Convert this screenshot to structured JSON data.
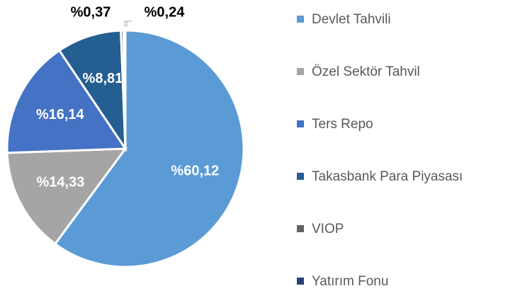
{
  "chart_data": {
    "type": "pie",
    "categories": [
      "Devlet Tahvili",
      "Özel Sektör Tahvil",
      "Ters Repo",
      "Takasbank Para Piyasası",
      "VIOP",
      "Yatırım Fonu"
    ],
    "values": [
      60.12,
      14.33,
      16.14,
      8.81,
      0.37,
      0.24
    ],
    "value_labels": [
      "%60,12",
      "%14,33",
      "%16,14",
      "%8,81",
      "%0,37",
      "%0,24"
    ],
    "colors": [
      "#5b9bd5",
      "#a5a5a5",
      "#4472c4",
      "#255e91",
      "#636363",
      "#264478"
    ]
  }
}
